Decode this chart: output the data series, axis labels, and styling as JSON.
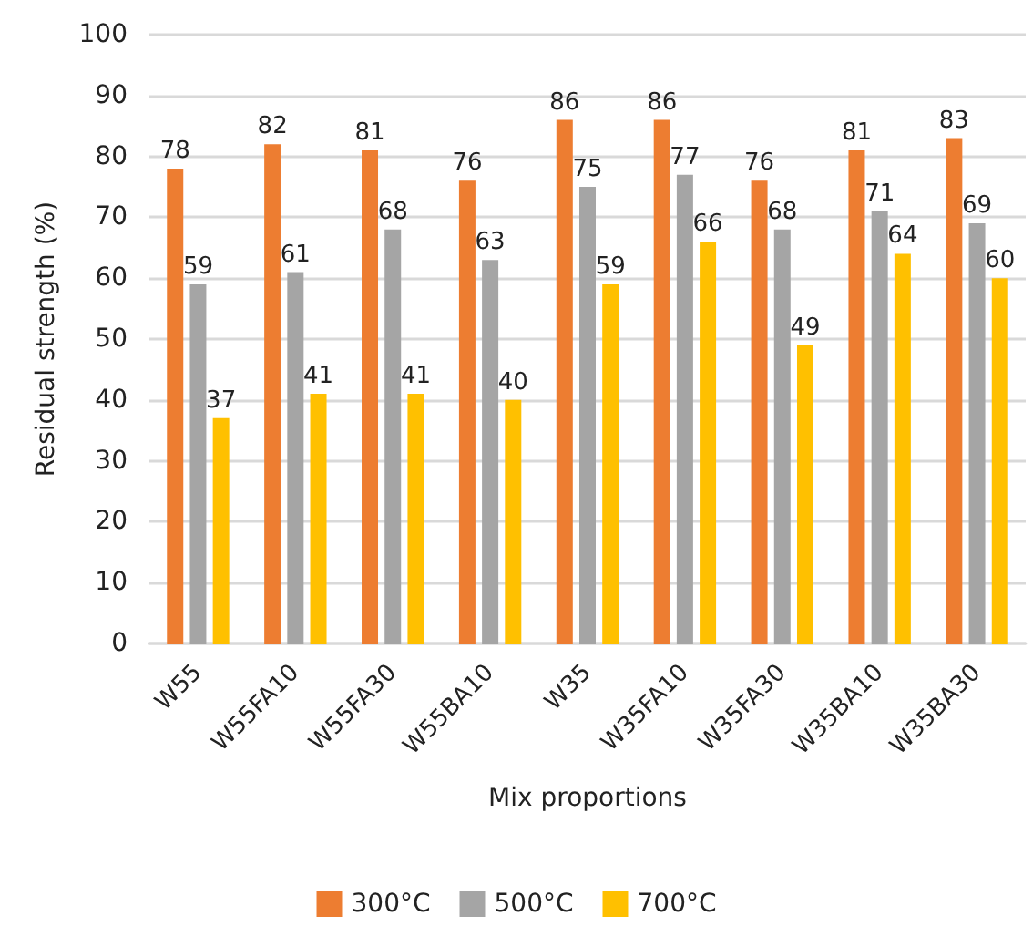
{
  "chart_data": {
    "type": "bar",
    "xlabel": "Mix proportions",
    "ylabel": "Residual strength (%)",
    "categories": [
      "W55",
      "W55FA10",
      "W55FA30",
      "W55BA10",
      "W35",
      "W35FA10",
      "W35FA30",
      "W35BA10",
      "W35BA30"
    ],
    "series": [
      {
        "name": "300°C",
        "color": "#ed7d31",
        "values": [
          78,
          82,
          81,
          76,
          86,
          86,
          76,
          81,
          83
        ]
      },
      {
        "name": "500°C",
        "color": "#a5a5a5",
        "values": [
          59,
          61,
          68,
          63,
          75,
          77,
          68,
          71,
          69
        ]
      },
      {
        "name": "700°C",
        "color": "#ffc000",
        "values": [
          37,
          41,
          41,
          40,
          59,
          66,
          49,
          64,
          60
        ]
      }
    ],
    "ylim": [
      0,
      100
    ],
    "yticks": [
      0,
      10,
      20,
      30,
      40,
      50,
      60,
      70,
      80,
      90,
      100
    ],
    "grid": "y",
    "legend": "bottom",
    "data_labels": true
  }
}
